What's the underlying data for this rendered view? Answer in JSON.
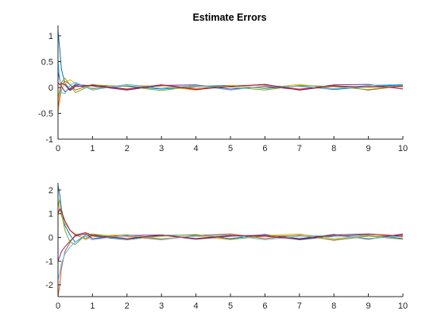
{
  "chart_data": [
    {
      "type": "line",
      "title": "Estimate Errors",
      "xlabel": "",
      "ylabel": "",
      "xlim": [
        0,
        10
      ],
      "ylim": [
        -1,
        1.2
      ],
      "xticks": [
        0,
        1,
        2,
        3,
        4,
        5,
        6,
        7,
        8,
        9,
        10
      ],
      "yticks": [
        -1,
        -0.5,
        0,
        0.5,
        1
      ],
      "ytick_labels": [
        "-1",
        "-0.5",
        "0",
        "0.5",
        "1"
      ],
      "grid": false,
      "legend": "none",
      "series": [
        {
          "color": "#0072BD",
          "x": [
            0,
            0.05,
            0.1,
            0.2,
            0.35,
            0.5,
            1,
            2,
            3,
            4,
            5,
            6,
            7,
            8,
            9,
            10
          ],
          "y": [
            1.1,
            0.75,
            0.35,
            0.08,
            -0.04,
            0.04,
            -0.02,
            0.03,
            -0.03,
            0.02,
            0.04,
            -0.02,
            0.03,
            -0.04,
            0.02,
            0.05
          ]
        },
        {
          "color": "#D95319",
          "x": [
            0,
            0.05,
            0.1,
            0.2,
            0.35,
            0.5,
            1,
            2,
            3,
            4,
            5,
            6,
            7,
            8,
            9,
            10
          ],
          "y": [
            -0.4,
            -0.15,
            0.05,
            0.12,
            0.06,
            -0.05,
            0.06,
            -0.04,
            0.05,
            -0.02,
            0.03,
            0.05,
            -0.03,
            0.04,
            -0.05,
            0.03
          ]
        },
        {
          "color": "#EDB120",
          "x": [
            0,
            0.05,
            0.1,
            0.2,
            0.35,
            0.5,
            1,
            2,
            3,
            4,
            5,
            6,
            7,
            8,
            9,
            10
          ],
          "y": [
            -0.5,
            -0.25,
            -0.05,
            0.1,
            0.15,
            0.08,
            -0.03,
            0.05,
            0.02,
            -0.05,
            0.04,
            -0.01,
            0.06,
            -0.02,
            0.03,
            -0.02
          ]
        },
        {
          "color": "#7E2F8E",
          "x": [
            0,
            0.05,
            0.1,
            0.2,
            0.35,
            0.5,
            1,
            2,
            3,
            4,
            5,
            6,
            7,
            8,
            9,
            10
          ],
          "y": [
            0.3,
            0.15,
            0.02,
            -0.08,
            -0.02,
            0.06,
            0.03,
            -0.05,
            0.04,
            0.05,
            -0.03,
            0.02,
            -0.04,
            0.05,
            0.06,
            -0.03
          ]
        },
        {
          "color": "#77AC30",
          "x": [
            0,
            0.05,
            0.1,
            0.2,
            0.35,
            0.5,
            1,
            2,
            3,
            4,
            5,
            6,
            7,
            8,
            9,
            10
          ],
          "y": [
            -0.2,
            -0.05,
            0.1,
            0.18,
            0.05,
            -0.1,
            0.05,
            0.02,
            -0.06,
            0.03,
            0.01,
            -0.05,
            0.04,
            0.02,
            -0.04,
            0.04
          ]
        },
        {
          "color": "#4DBEEE",
          "x": [
            0,
            0.05,
            0.1,
            0.2,
            0.35,
            0.5,
            1,
            2,
            3,
            4,
            5,
            6,
            7,
            8,
            9,
            10
          ],
          "y": [
            0.5,
            0.2,
            -0.1,
            -0.12,
            0.04,
            0.1,
            -0.05,
            0.06,
            -0.02,
            0.04,
            -0.05,
            0.03,
            0.02,
            -0.03,
            0.04,
            0.06
          ]
        },
        {
          "color": "#A2142F",
          "x": [
            0,
            0.05,
            0.1,
            0.2,
            0.35,
            0.5,
            1,
            2,
            3,
            4,
            5,
            6,
            7,
            8,
            9,
            10
          ],
          "y": [
            0.1,
            0.05,
            0.08,
            0.05,
            -0.06,
            0.02,
            0.04,
            -0.03,
            0.05,
            -0.04,
            0.02,
            0.06,
            -0.05,
            0.03,
            0.01,
            0.02
          ]
        }
      ]
    },
    {
      "type": "line",
      "title": "",
      "xlabel": "",
      "ylabel": "",
      "xlim": [
        0,
        10
      ],
      "ylim": [
        -2.5,
        2.3
      ],
      "xticks": [
        0,
        1,
        2,
        3,
        4,
        5,
        6,
        7,
        8,
        9,
        10
      ],
      "yticks": [
        -2,
        -1,
        0,
        1,
        2
      ],
      "ytick_labels": [
        "-2",
        "-1",
        "0",
        "1",
        "2"
      ],
      "grid": false,
      "legend": "none",
      "series": [
        {
          "color": "#0072BD",
          "x": [
            0,
            0.05,
            0.1,
            0.2,
            0.35,
            0.5,
            0.8,
            1,
            2,
            3,
            4,
            5,
            6,
            7,
            8,
            9,
            10
          ],
          "y": [
            2.2,
            1.8,
            1.2,
            0.5,
            0.1,
            -0.2,
            0.1,
            0.05,
            -0.1,
            0.08,
            0.1,
            -0.05,
            0.12,
            -0.1,
            0.05,
            0.1,
            -0.05
          ]
        },
        {
          "color": "#D95319",
          "x": [
            0,
            0.05,
            0.1,
            0.2,
            0.35,
            0.5,
            0.8,
            1,
            2,
            3,
            4,
            5,
            6,
            7,
            8,
            9,
            10
          ],
          "y": [
            -2.5,
            -2.0,
            -1.3,
            -0.6,
            -0.2,
            0.1,
            -0.05,
            0.1,
            0.05,
            -0.1,
            0.08,
            0.15,
            -0.05,
            0.1,
            -0.12,
            0.05,
            0.1
          ]
        },
        {
          "color": "#EDB120",
          "x": [
            0,
            0.05,
            0.1,
            0.2,
            0.35,
            0.5,
            0.8,
            1,
            2,
            3,
            4,
            5,
            6,
            7,
            8,
            9,
            10
          ],
          "y": [
            1.5,
            1.2,
            0.9,
            0.6,
            0.3,
            0.15,
            -0.1,
            0.05,
            0.12,
            -0.05,
            0.05,
            -0.1,
            0.08,
            0.15,
            -0.05,
            0.08,
            0.02
          ]
        },
        {
          "color": "#7E2F8E",
          "x": [
            0,
            0.05,
            0.1,
            0.2,
            0.35,
            0.5,
            0.8,
            1,
            2,
            3,
            4,
            5,
            6,
            7,
            8,
            9,
            10
          ],
          "y": [
            -1.0,
            -0.8,
            -0.6,
            -0.4,
            -0.15,
            0.05,
            0.15,
            -0.05,
            0.08,
            0.1,
            -0.08,
            0.05,
            0.1,
            -0.05,
            0.12,
            -0.08,
            0.15
          ]
        },
        {
          "color": "#77AC30",
          "x": [
            0,
            0.05,
            0.1,
            0.2,
            0.35,
            0.5,
            0.8,
            1,
            2,
            3,
            4,
            5,
            6,
            7,
            8,
            9,
            10
          ],
          "y": [
            1.3,
            1.6,
            1.0,
            0.3,
            -0.2,
            -0.3,
            0.1,
            0.15,
            -0.05,
            0.05,
            0.12,
            -0.08,
            0.05,
            0.08,
            -0.1,
            0.05,
            -0.08
          ]
        },
        {
          "color": "#4DBEEE",
          "x": [
            0,
            0.05,
            0.1,
            0.2,
            0.35,
            0.5,
            0.8,
            1,
            2,
            3,
            4,
            5,
            6,
            7,
            8,
            9,
            10
          ],
          "y": [
            -1.8,
            -1.5,
            -1.1,
            -0.7,
            -0.4,
            -0.2,
            0.05,
            -0.1,
            0.1,
            -0.08,
            0.05,
            0.1,
            -0.1,
            0.05,
            0.08,
            -0.05,
            0.05
          ]
        },
        {
          "color": "#A2142F",
          "x": [
            0,
            0.05,
            0.1,
            0.2,
            0.35,
            0.5,
            0.8,
            1,
            2,
            3,
            4,
            5,
            6,
            7,
            8,
            9,
            10
          ],
          "y": [
            1.0,
            1.2,
            1.1,
            0.7,
            0.3,
            0.1,
            0.2,
            0.08,
            -0.05,
            0.1,
            -0.05,
            0.08,
            0.05,
            -0.08,
            0.1,
            0.15,
            0.05
          ]
        }
      ]
    }
  ]
}
